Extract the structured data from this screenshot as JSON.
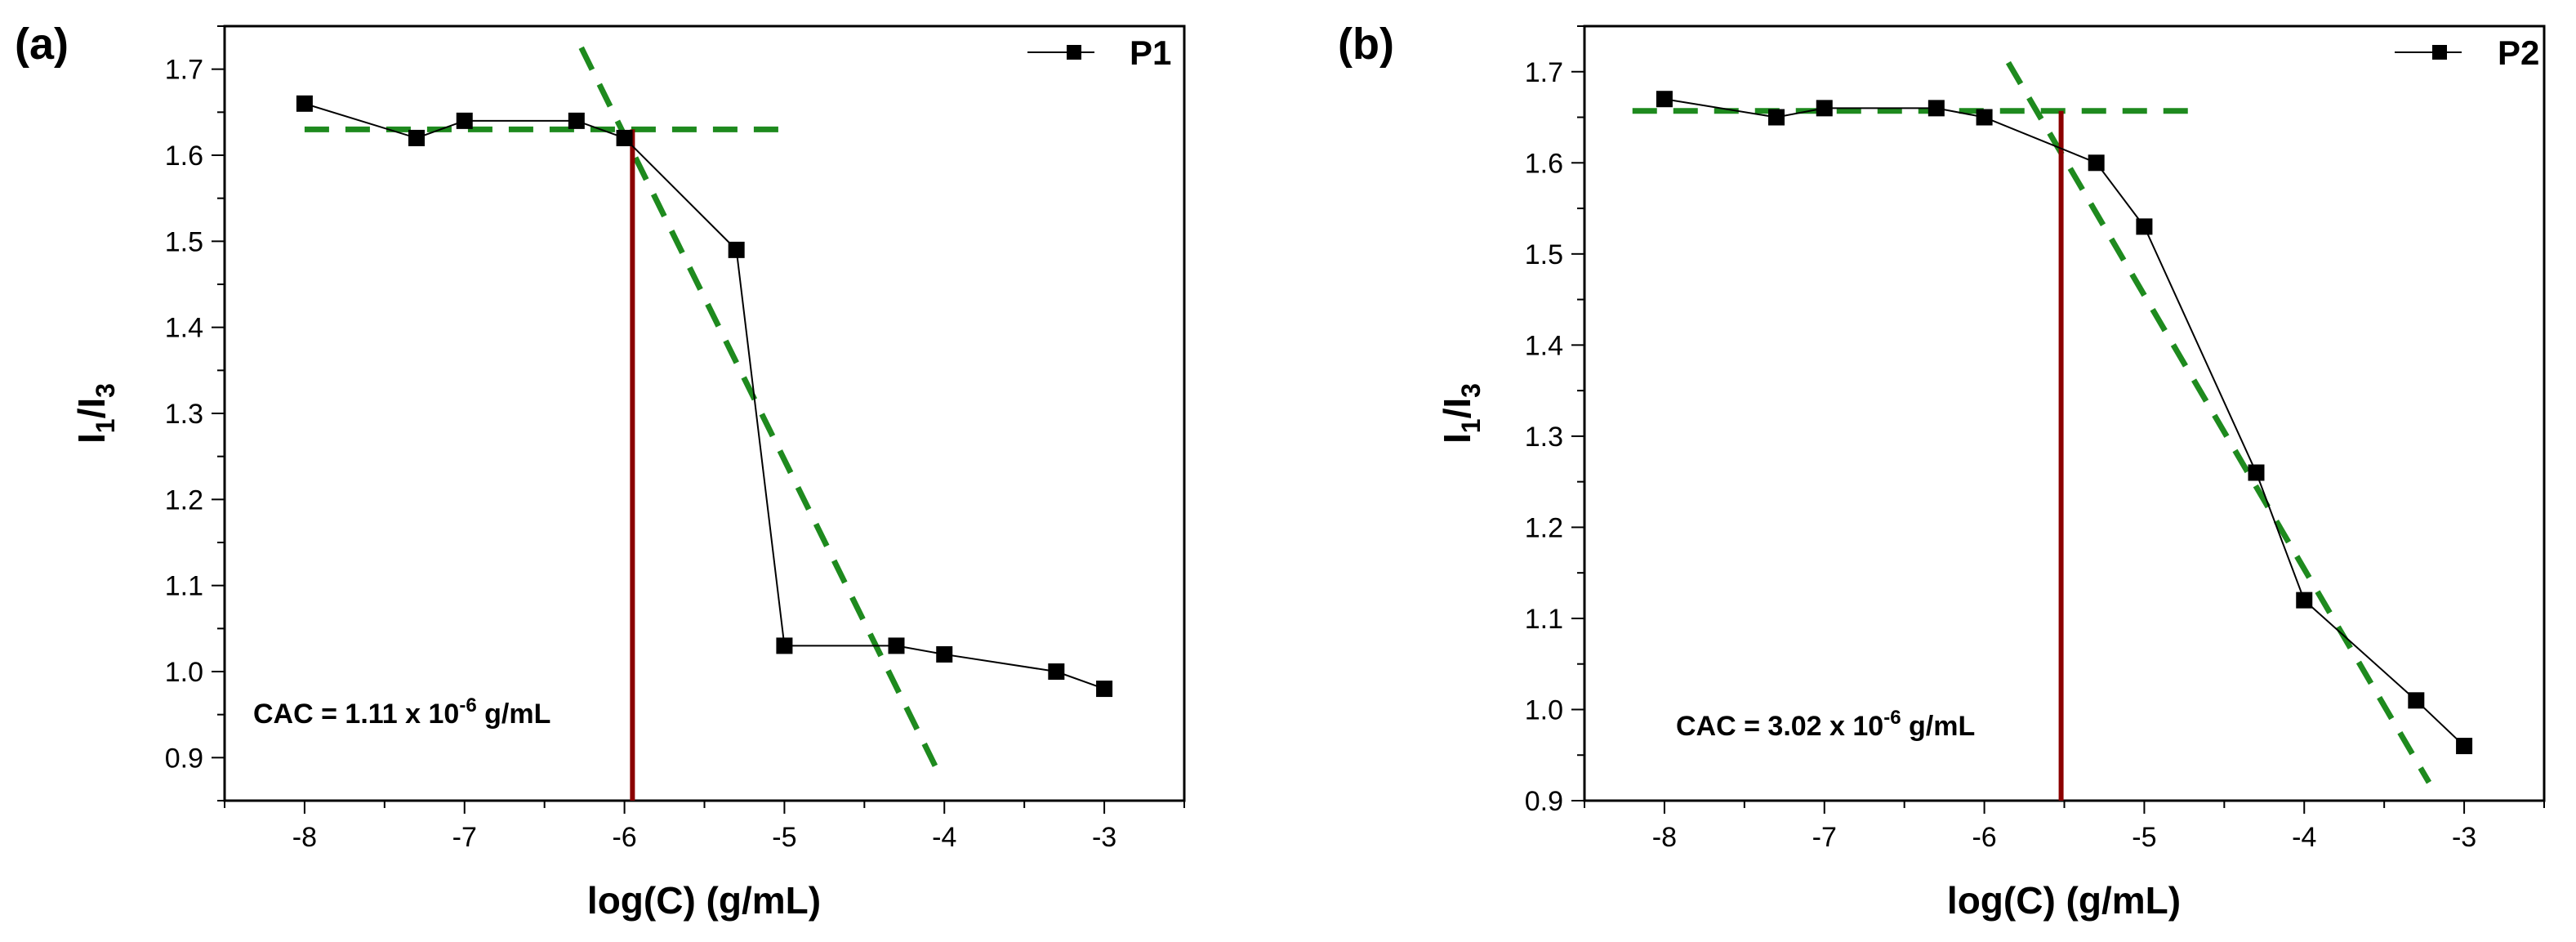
{
  "chart_data": [
    {
      "type": "line",
      "panel": "(a)",
      "xlabel": "log(C) (g/mL)",
      "ylabel_main": "I",
      "ylabel_sub1": "1",
      "ylabel_slash": "/I",
      "ylabel_sub2": "3",
      "xlim": [
        -8.5,
        -2.5
      ],
      "ylim": [
        0.85,
        1.75
      ],
      "xticks": [
        -8,
        -7,
        -6,
        -5,
        -4,
        -3
      ],
      "xtick_labels": [
        "-8",
        "-7",
        "-6",
        "-5",
        "-4",
        "-3"
      ],
      "yticks": [
        0.9,
        1.0,
        1.1,
        1.2,
        1.3,
        1.4,
        1.5,
        1.6,
        1.7
      ],
      "ytick_labels": [
        "0.9",
        "1.0",
        "1.1",
        "1.2",
        "1.3",
        "1.4",
        "1.5",
        "1.6",
        "1.7"
      ],
      "legend_position": "top-right",
      "series": [
        {
          "name": "P1",
          "x": [
            -8,
            -7.3,
            -7,
            -6.3,
            -6,
            -5.3,
            -5,
            -4.3,
            -4,
            -3.3,
            -3
          ],
          "y": [
            1.66,
            1.62,
            1.64,
            1.64,
            1.62,
            1.49,
            1.03,
            1.03,
            1.02,
            1.0,
            0.98
          ],
          "color": "#000000"
        }
      ],
      "fit_lines": [
        {
          "name": "plateau-fit",
          "x": [
            -8.0,
            -4.95
          ],
          "y": [
            1.63,
            1.63
          ],
          "color": "#1e8a1e"
        },
        {
          "name": "slope-fit",
          "x": [
            -6.27,
            -4.03
          ],
          "y": [
            1.725,
            0.88
          ],
          "color": "#1e8a1e"
        }
      ],
      "cac_marker": {
        "x": -5.95,
        "y_top": 1.63,
        "color": "#8b0000"
      },
      "annotation": {
        "prefix": "CAC = 1.11 x 10",
        "exponent": "-6",
        "suffix": " g/mL"
      }
    },
    {
      "type": "line",
      "panel": "(b)",
      "xlabel": "log(C) (g/mL)",
      "ylabel_main": "I",
      "ylabel_sub1": "1",
      "ylabel_slash": "/I",
      "ylabel_sub2": "3",
      "xlim": [
        -8.5,
        -2.5
      ],
      "ylim": [
        0.9,
        1.75
      ],
      "xticks": [
        -8,
        -7,
        -6,
        -5,
        -4,
        -3
      ],
      "xtick_labels": [
        "-8",
        "-7",
        "-6",
        "-5",
        "-4",
        "-3"
      ],
      "yticks": [
        0.9,
        1.0,
        1.1,
        1.2,
        1.3,
        1.4,
        1.5,
        1.6,
        1.7
      ],
      "ytick_labels": [
        "0.9",
        "1.0",
        "1.1",
        "1.2",
        "1.3",
        "1.4",
        "1.5",
        "1.6",
        "1.7"
      ],
      "legend_position": "top-right",
      "series": [
        {
          "name": "P2",
          "x": [
            -8,
            -7.3,
            -7,
            -6.3,
            -6,
            -5.3,
            -5,
            -4.3,
            -4,
            -3.3,
            -3
          ],
          "y": [
            1.67,
            1.65,
            1.66,
            1.66,
            1.65,
            1.6,
            1.53,
            1.26,
            1.12,
            1.01,
            0.96
          ],
          "color": "#000000"
        }
      ],
      "fit_lines": [
        {
          "name": "plateau-fit",
          "x": [
            -8.2,
            -4.7
          ],
          "y": [
            1.657,
            1.657
          ],
          "color": "#1e8a1e"
        },
        {
          "name": "slope-fit",
          "x": [
            -5.85,
            -3.22
          ],
          "y": [
            1.71,
            0.92
          ],
          "color": "#1e8a1e"
        }
      ],
      "cac_marker": {
        "x": -5.52,
        "y_top": 1.657,
        "color": "#8b0000"
      },
      "annotation": {
        "prefix": "CAC = 3.02 x 10",
        "exponent": "-6",
        "suffix": " g/mL"
      }
    }
  ]
}
